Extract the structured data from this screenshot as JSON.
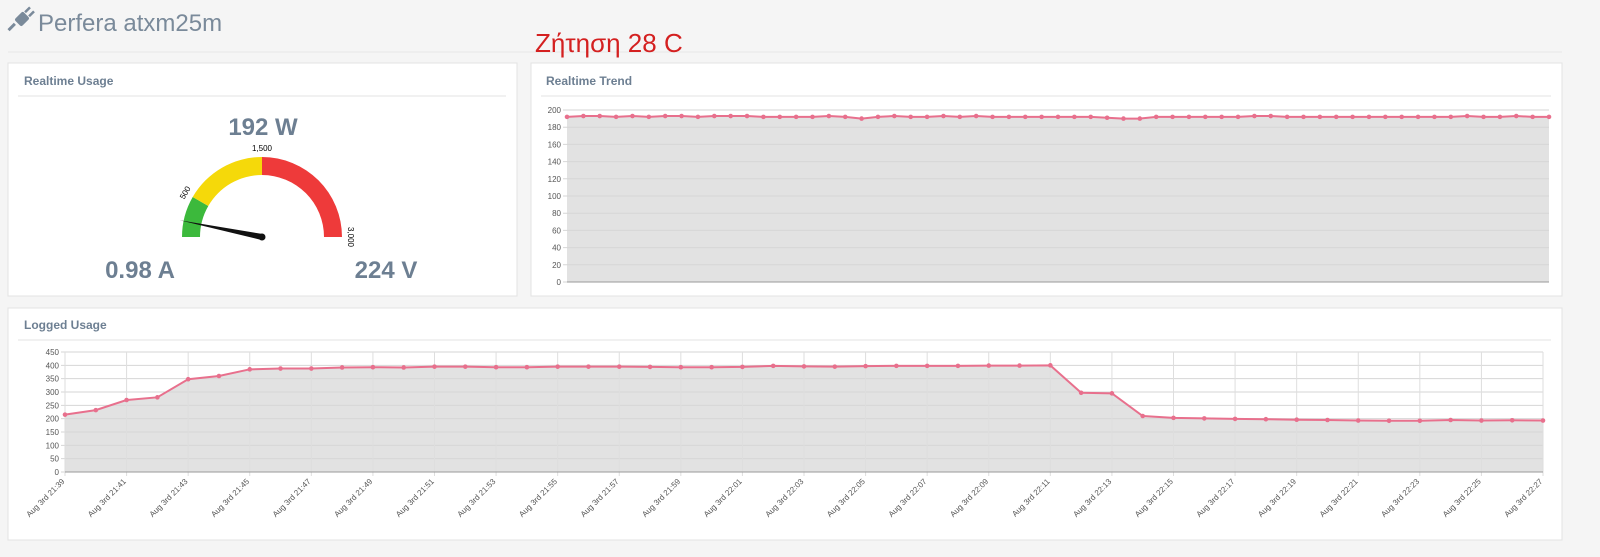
{
  "header": {
    "title": "Perfera atxm25m"
  },
  "annotation": "Ζήτηση 28 C",
  "chart_data": [
    {
      "type": "gauge",
      "title": "Realtime Usage",
      "values": [
        192
      ],
      "value_labels": [
        "192 W"
      ],
      "annotations": [
        "0.98 A",
        "224 V"
      ],
      "range": [
        0,
        3000
      ],
      "ticks": [
        500,
        {
          "value": 1500,
          "label": "1,500"
        },
        {
          "value": 3000,
          "label": "3,000"
        }
      ],
      "bands": [
        {
          "from": 0,
          "to": 500,
          "color": "#3cb93c"
        },
        {
          "from": 500,
          "to": 1500,
          "color": "#f5d90a"
        },
        {
          "from": 1500,
          "to": 3000,
          "color": "#ee3a3a"
        }
      ],
      "needle_color": "#111111"
    },
    {
      "type": "line",
      "title": "Realtime Trend",
      "values": [
        192,
        193,
        193,
        192,
        193,
        192,
        193,
        193,
        192,
        193,
        193,
        193,
        192,
        192,
        192,
        192,
        193,
        192,
        190,
        192,
        193,
        192,
        192,
        193,
        192,
        193,
        192,
        192,
        192,
        192,
        192,
        192,
        192,
        191,
        190,
        190,
        192,
        192,
        192,
        192,
        192,
        192,
        193,
        193,
        192,
        192,
        192,
        192,
        192,
        192,
        192,
        192,
        192,
        192,
        192,
        193,
        192,
        192,
        193,
        192,
        192
      ],
      "ylim": [
        0,
        200
      ],
      "yticks": [
        0,
        20,
        40,
        60,
        80,
        100,
        120,
        140,
        160,
        180,
        200
      ],
      "color": "#e8708d",
      "fill": "#e2e2e2",
      "grid": true
    },
    {
      "type": "line",
      "title": "Logged Usage",
      "categories": [
        "Aug 3rd 21:39",
        null,
        "Aug 3rd 21:41",
        null,
        "Aug 3rd 21:43",
        null,
        "Aug 3rd 21:45",
        null,
        "Aug 3rd 21:47",
        null,
        "Aug 3rd 21:49",
        null,
        "Aug 3rd 21:51",
        null,
        "Aug 3rd 21:53",
        null,
        "Aug 3rd 21:55",
        null,
        "Aug 3rd 21:57",
        null,
        "Aug 3rd 21:59",
        null,
        "Aug 3rd 22:01",
        null,
        "Aug 3rd 22:03",
        null,
        "Aug 3rd 22:05",
        null,
        "Aug 3rd 22:07",
        null,
        "Aug 3rd 22:09",
        null,
        "Aug 3rd 22:11",
        null,
        "Aug 3rd 22:13",
        null,
        "Aug 3rd 22:15",
        null,
        "Aug 3rd 22:17",
        null,
        "Aug 3rd 22:19",
        null,
        "Aug 3rd 22:21",
        null,
        "Aug 3rd 22:23",
        null,
        "Aug 3rd 22:25",
        null,
        "Aug 3rd 22:27"
      ],
      "values": [
        215,
        232,
        270,
        280,
        348,
        360,
        385,
        388,
        388,
        392,
        393,
        392,
        395,
        395,
        393,
        393,
        395,
        395,
        395,
        394,
        393,
        393,
        394,
        398,
        396,
        395,
        397,
        398,
        398,
        398,
        399,
        399,
        400,
        297,
        295,
        210,
        203,
        201,
        199,
        198,
        196,
        195,
        193,
        192,
        192,
        195,
        193,
        194,
        193
      ],
      "ylim": [
        0,
        450
      ],
      "yticks": [
        0,
        50,
        100,
        150,
        200,
        250,
        300,
        350,
        400,
        450
      ],
      "color": "#e8708d",
      "fill": "#e2e2e2",
      "grid": true
    }
  ]
}
